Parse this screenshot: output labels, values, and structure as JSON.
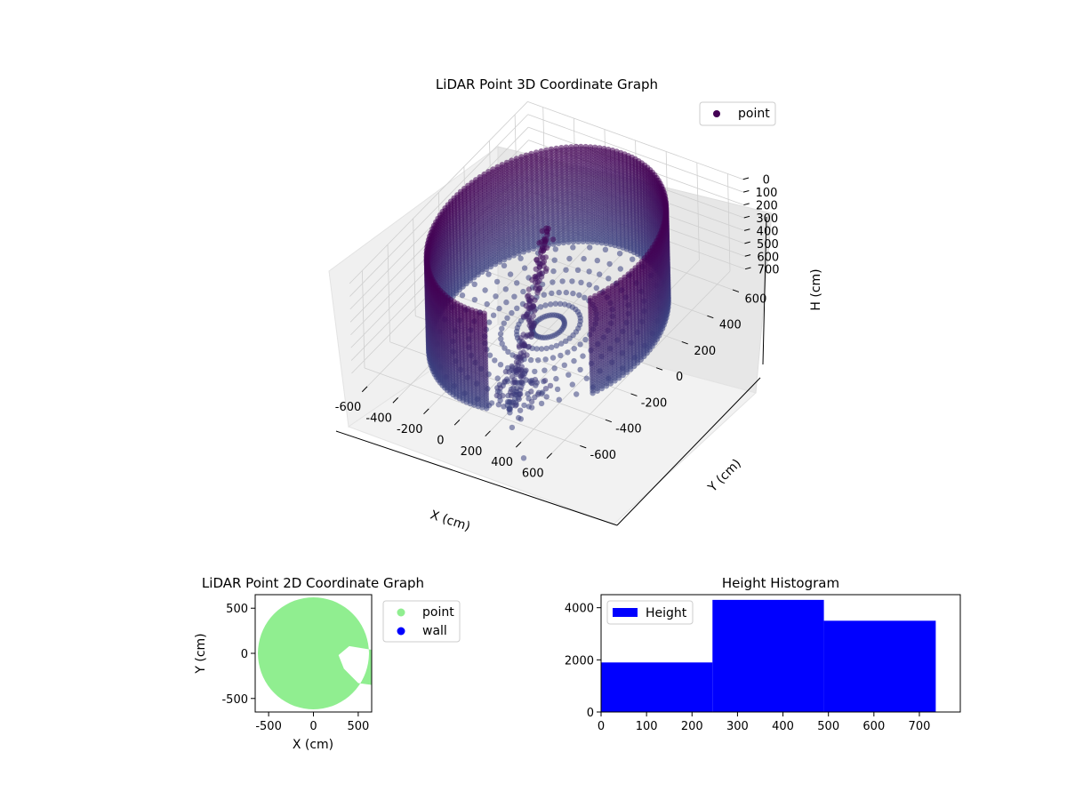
{
  "chart_data": [
    {
      "type": "scatter",
      "projection": "3d",
      "title": "LiDAR Point 3D Coordinate Graph",
      "xlabel": "X (cm)",
      "ylabel": "Y (cm)",
      "zlabel": "H (cm)",
      "xlim": [
        -700,
        700
      ],
      "ylim": [
        -700,
        700
      ],
      "zlim": [
        0,
        760
      ],
      "z_inverted": true,
      "xticks": [
        "-600",
        "-400",
        "-200",
        "0",
        "200",
        "400",
        "600"
      ],
      "yticks": [
        "-600",
        "-400",
        "-200",
        "0",
        "200",
        "400",
        "600"
      ],
      "zticks": [
        "0",
        "100",
        "200",
        "300",
        "400",
        "500",
        "600",
        "700"
      ],
      "legend": {
        "label": "point",
        "position": "top-right"
      },
      "color_map": "viridis (dark purple to slate blue)",
      "series": [
        {
          "name": "point",
          "shape": "cylindrical wall",
          "radius": 600,
          "h_range": [
            0,
            740
          ],
          "gap_angle_range_deg": [
            -80,
            -30
          ]
        },
        {
          "name": "point",
          "shape": "interior object",
          "x_range": [
            -100,
            300
          ],
          "y_range": [
            -600,
            100
          ],
          "h_range": [
            0,
            740
          ]
        },
        {
          "name": "point",
          "shape": "outliers",
          "x": [
            300,
            500
          ],
          "y": [
            -650,
            -800
          ],
          "h": [
            740,
            740
          ]
        }
      ]
    },
    {
      "type": "scatter",
      "title": "LiDAR Point 2D Coordinate Graph",
      "xlabel": "X (cm)",
      "ylabel": "Y (cm)",
      "xlim": [
        -650,
        650
      ],
      "ylim": [
        -650,
        650
      ],
      "xticks": [
        "-500",
        "0",
        "500"
      ],
      "yticks": [
        "500",
        "0",
        "-500"
      ],
      "legend_position": "outside-right",
      "series": [
        {
          "name": "point",
          "color": "#90ee90",
          "shape": "filled disc",
          "radius": 620,
          "center": [
            0,
            0
          ],
          "notch_x_range": [
            280,
            650
          ],
          "notch_y_range": [
            -350,
            80
          ]
        },
        {
          "name": "wall",
          "color": "#0000ff",
          "points": []
        }
      ]
    },
    {
      "type": "bar",
      "title": "Height Histogram",
      "xlim": [
        0,
        790
      ],
      "ylim": [
        0,
        4500
      ],
      "xticks": [
        "0",
        "100",
        "200",
        "300",
        "400",
        "500",
        "600",
        "700"
      ],
      "yticks": [
        "0",
        "2000",
        "4000"
      ],
      "legend": {
        "label": "Height",
        "position": "top-left"
      },
      "color": "#0000ff",
      "bin_edges": [
        0,
        245,
        490,
        736
      ],
      "values": [
        1900,
        4300,
        3500
      ]
    }
  ]
}
